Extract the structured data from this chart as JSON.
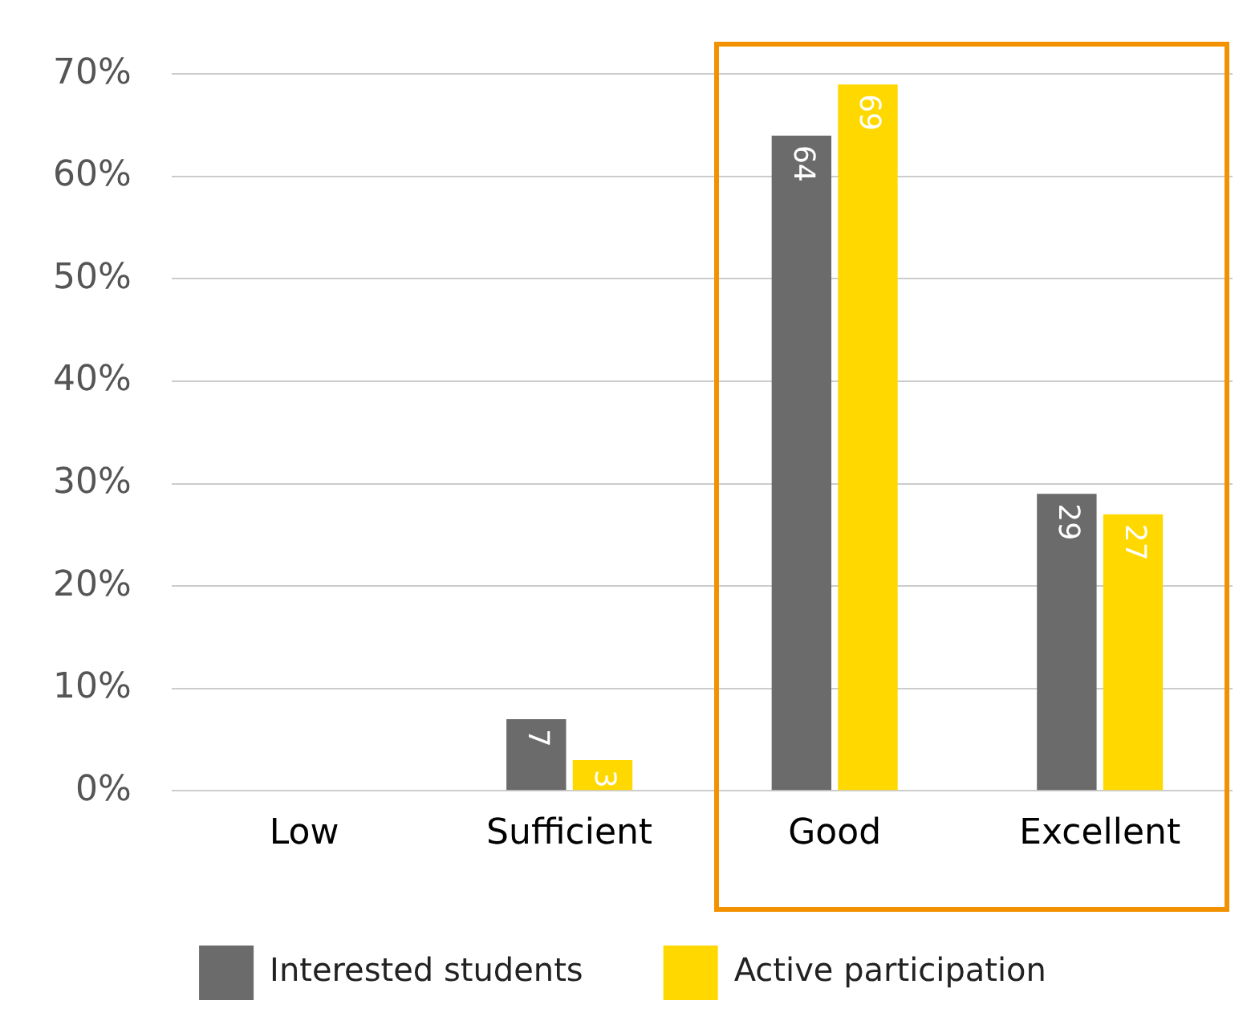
{
  "chart_data": {
    "type": "bar",
    "categories": [
      "Low",
      "Sufficient",
      "Good",
      "Excellent"
    ],
    "series": [
      {
        "name": "Interested students",
        "color": "#6b6b6b",
        "values": [
          null,
          7,
          64,
          29
        ]
      },
      {
        "name": "Active participation",
        "color": "#ffd800",
        "values": [
          null,
          3,
          69,
          27
        ]
      }
    ],
    "ylim": [
      0,
      70
    ],
    "yticks": [
      {
        "value": 0,
        "label": "0%"
      },
      {
        "value": 10,
        "label": "10%"
      },
      {
        "value": 20,
        "label": "20%"
      },
      {
        "value": 30,
        "label": "30%"
      },
      {
        "value": 40,
        "label": "40%"
      },
      {
        "value": 50,
        "label": "50%"
      },
      {
        "value": 60,
        "label": "60%"
      },
      {
        "value": 70,
        "label": "70%"
      }
    ],
    "grid": "y",
    "legend": "bottom",
    "data_labels": true
  }
}
